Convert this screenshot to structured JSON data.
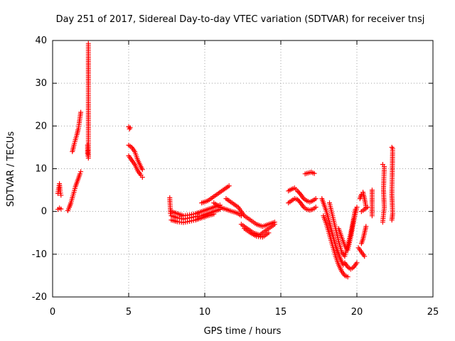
{
  "chart_data": {
    "type": "scatter",
    "title": "Day 251 of 2017, Sidereal Day-to-day VTEC variation (SDTVAR) for receiver tnsj",
    "xlabel": "GPS time / hours",
    "ylabel": "SDTVAR / TECUs",
    "xlim": [
      0,
      25
    ],
    "ylim": [
      -20,
      40
    ],
    "xticks": [
      0,
      5,
      10,
      15,
      20,
      25
    ],
    "yticks": [
      -20,
      -10,
      0,
      10,
      20,
      30,
      40
    ],
    "grid": true,
    "marker": "+",
    "color": "#ff0000",
    "series": [
      {
        "name": "SDTVAR",
        "segments": [
          {
            "x": [
              0.35,
              0.4,
              0.45,
              0.5,
              0.55
            ],
            "y": [
              4.2,
              5.5,
              6.5,
              4.8,
              3.8
            ]
          },
          {
            "x": [
              0.35,
              0.45,
              0.55
            ],
            "y": [
              0.5,
              0.8,
              0.6
            ]
          },
          {
            "x": [
              1.0,
              1.1,
              1.2,
              1.3,
              1.4,
              1.5,
              1.6,
              1.7,
              1.8,
              1.85
            ],
            "y": [
              0.2,
              1.0,
              2.0,
              3.2,
              4.5,
              5.8,
              6.8,
              7.8,
              8.8,
              9.3
            ]
          },
          {
            "x": [
              1.3,
              1.4,
              1.5,
              1.6,
              1.7,
              1.75,
              1.8,
              1.85
            ],
            "y": [
              14.0,
              15.5,
              16.8,
              18.0,
              19.5,
              20.8,
              22.0,
              23.2
            ]
          },
          {
            "x": [
              2.3,
              2.3,
              2.35,
              2.35
            ],
            "y": [
              15.5,
              13.5,
              12.5,
              39.3
            ]
          },
          {
            "x": [
              5.0,
              5.05,
              5.1
            ],
            "y": [
              19.8,
              19.3,
              19.6
            ]
          },
          {
            "x": [
              5.0,
              5.2,
              5.4,
              5.6,
              5.8,
              5.9
            ],
            "y": [
              15.5,
              15.0,
              14.0,
              12.0,
              10.5,
              9.8
            ]
          },
          {
            "x": [
              5.0,
              5.2,
              5.4,
              5.6,
              5.8,
              5.9
            ],
            "y": [
              13.0,
              12.0,
              11.0,
              9.5,
              8.5,
              8.0
            ]
          },
          {
            "x": [
              7.7,
              7.75
            ],
            "y": [
              3.2,
              -0.5
            ]
          },
          {
            "x": [
              7.8,
              8.2,
              8.6,
              9.0,
              9.4,
              9.8,
              10.2,
              10.6,
              11.0
            ],
            "y": [
              -1.0,
              -1.5,
              -1.8,
              -1.5,
              -1.2,
              -1.0,
              -0.5,
              0.0,
              0.5
            ]
          },
          {
            "x": [
              7.8,
              8.2,
              8.6,
              9.0,
              9.4,
              9.8,
              10.2,
              10.6,
              11.0
            ],
            "y": [
              0.0,
              -0.5,
              -1.0,
              -0.8,
              -0.5,
              0.0,
              0.5,
              1.0,
              1.5
            ]
          },
          {
            "x": [
              7.8,
              8.2,
              8.6,
              9.0,
              9.4,
              9.8,
              10.2,
              10.6
            ],
            "y": [
              -2.0,
              -2.4,
              -2.6,
              -2.3,
              -2.0,
              -1.5,
              -1.0,
              -0.6
            ]
          },
          {
            "x": [
              9.8,
              10.2,
              10.6,
              11.0,
              11.4,
              11.6
            ],
            "y": [
              2.0,
              2.5,
              3.5,
              4.5,
              5.5,
              6.0
            ]
          },
          {
            "x": [
              10.6,
              11.0,
              11.4,
              11.8,
              12.0,
              12.2,
              12.4
            ],
            "y": [
              2.0,
              1.0,
              0.5,
              0.0,
              -0.2,
              -0.5,
              -1.0
            ]
          },
          {
            "x": [
              11.4,
              11.8,
              12.2,
              12.6,
              13.0,
              13.4,
              13.8,
              14.2,
              14.6
            ],
            "y": [
              3.0,
              2.0,
              1.0,
              -1.0,
              -2.0,
              -3.0,
              -3.5,
              -3.0,
              -2.5
            ]
          },
          {
            "x": [
              12.4,
              12.8,
              13.2,
              13.6,
              14.0,
              14.4,
              14.6
            ],
            "y": [
              -3.0,
              -4.0,
              -5.0,
              -5.5,
              -4.5,
              -3.5,
              -3.0
            ]
          },
          {
            "x": [
              12.6,
              13.0,
              13.4,
              13.8,
              14.2
            ],
            "y": [
              -4.0,
              -5.0,
              -5.8,
              -6.0,
              -5.0
            ]
          },
          {
            "x": [
              15.5,
              15.7,
              15.9,
              16.1,
              16.3,
              16.5,
              16.7,
              16.9,
              17.1,
              17.3
            ],
            "y": [
              4.8,
              5.2,
              5.5,
              4.8,
              4.0,
              3.0,
              2.5,
              2.2,
              2.5,
              3.0
            ]
          },
          {
            "x": [
              15.5,
              15.7,
              15.9,
              16.1,
              16.3,
              16.5,
              16.7,
              16.9,
              17.1,
              17.3
            ],
            "y": [
              2.0,
              2.5,
              3.0,
              2.8,
              2.0,
              1.0,
              0.5,
              0.3,
              0.5,
              1.0
            ]
          },
          {
            "x": [
              16.6,
              16.8,
              17.0,
              17.2
            ],
            "y": [
              8.8,
              9.0,
              9.2,
              8.9
            ]
          },
          {
            "x": [
              17.7,
              18.0,
              18.3,
              18.6,
              18.9,
              19.1
            ],
            "y": [
              3.0,
              0.0,
              -4.0,
              -8.0,
              -11.0,
              -12.5
            ]
          },
          {
            "x": [
              17.8,
              18.0,
              18.2,
              18.4,
              18.6,
              18.8,
              19.0,
              19.2,
              19.4
            ],
            "y": [
              -1.0,
              -3.0,
              -5.5,
              -8.0,
              -10.5,
              -12.5,
              -14.0,
              -15.0,
              -15.3
            ]
          },
          {
            "x": [
              18.2,
              18.4,
              18.6,
              18.8,
              19.0,
              19.2,
              19.4,
              19.6,
              19.8,
              19.9
            ],
            "y": [
              2.0,
              -1.0,
              -4.0,
              -7.0,
              -9.5,
              -10.5,
              -8.0,
              -5.0,
              -1.5,
              0.5
            ]
          },
          {
            "x": [
              18.8,
              19.0,
              19.2,
              19.4,
              19.6,
              19.8,
              20.0
            ],
            "y": [
              -4.0,
              -6.0,
              -8.0,
              -9.0,
              -6.0,
              -2.0,
              1.0
            ]
          },
          {
            "x": [
              19.2,
              19.4,
              19.6,
              19.8,
              20.0
            ],
            "y": [
              -12.0,
              -13.0,
              -13.5,
              -13.0,
              -12.0
            ]
          },
          {
            "x": [
              20.1,
              20.3,
              20.5
            ],
            "y": [
              -8.5,
              -9.5,
              -10.5
            ]
          },
          {
            "x": [
              20.2,
              20.3,
              20.4,
              20.5,
              20.6
            ],
            "y": [
              3.0,
              4.0,
              4.5,
              3.0,
              1.0
            ]
          },
          {
            "x": [
              20.3,
              20.5,
              20.7
            ],
            "y": [
              0.0,
              0.5,
              1.0
            ]
          },
          {
            "x": [
              20.3,
              20.4,
              20.5,
              20.6
            ],
            "y": [
              -7.5,
              -6.5,
              -5.0,
              -3.5
            ]
          },
          {
            "x": [
              21.0,
              21.0,
              21.0
            ],
            "y": [
              5.0,
              3.0,
              -1.0
            ]
          },
          {
            "x": [
              21.7,
              21.8,
              21.75,
              21.8,
              21.7
            ],
            "y": [
              11.0,
              10.5,
              5.0,
              1.0,
              -2.5
            ]
          },
          {
            "x": [
              22.3,
              22.35,
              22.3,
              22.35,
              22.3
            ],
            "y": [
              15.0,
              14.7,
              4.0,
              -0.5,
              -2.0
            ]
          }
        ]
      }
    ]
  }
}
